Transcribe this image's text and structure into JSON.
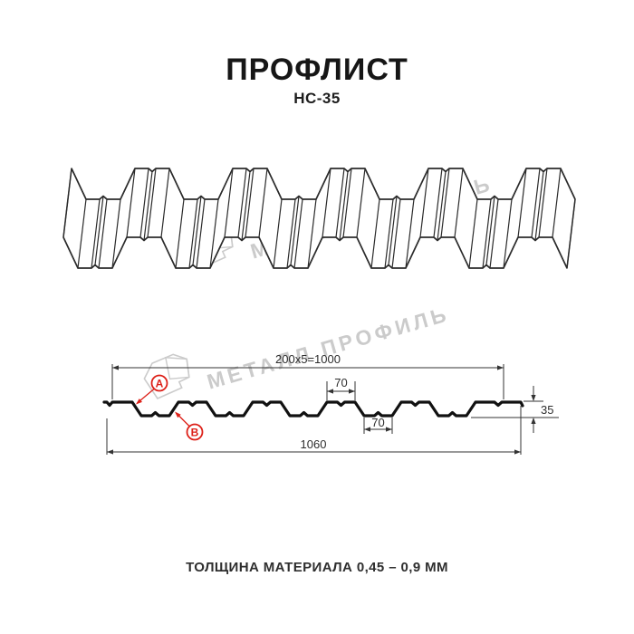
{
  "header": {
    "title": "ПРОФЛИСТ",
    "subtitle": "НС-35"
  },
  "watermark": {
    "text": "МЕТАЛЛ ПРОФИЛЬ",
    "logo": "metal-profile-logo",
    "color": "#cbcbcb"
  },
  "diagram": {
    "type": "profiled-sheet-technical-drawing",
    "dimensions": {
      "working_width": "200x5=1000",
      "rib_top_width": "70",
      "rib_bottom_width": "70",
      "overall_width": "1060",
      "profile_height": "35"
    },
    "markers": {
      "a": "A",
      "b": "B"
    }
  },
  "caption": {
    "text": "ТОЛЩИНА МАТЕРИАЛА 0,45 – 0,9 ММ"
  },
  "colors": {
    "accent_red": "#dd2018",
    "profile_line": "#111111",
    "dim_line": "#333333",
    "sheet_line": "#2b2b2b",
    "watermark": "#cbcbcb"
  }
}
